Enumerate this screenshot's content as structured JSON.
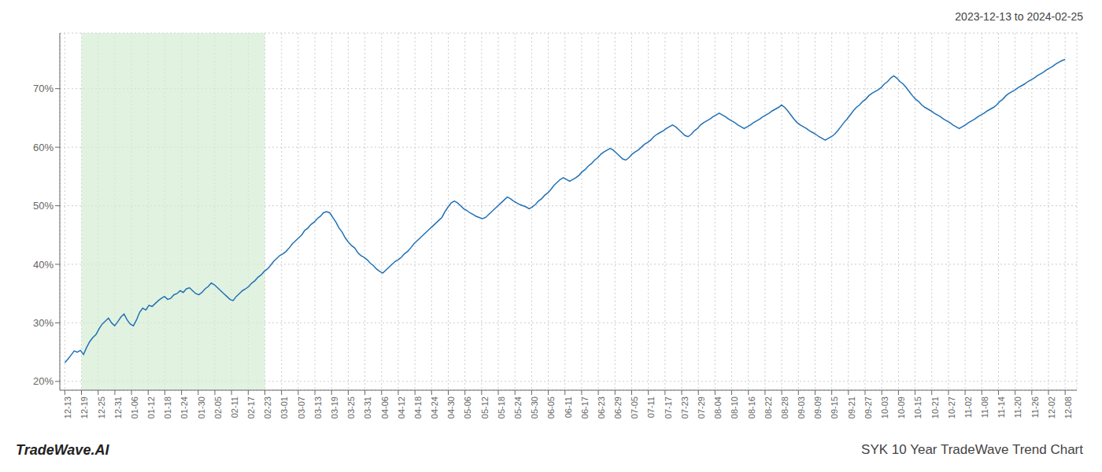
{
  "chart_data": {
    "type": "line",
    "title": "SYK 10 Year TradeWave Trend Chart",
    "subtitle": "2023-12-13 to 2024-02-25",
    "annotations": [
      "TradeWave.AI"
    ],
    "color": "#2171b5",
    "grid": true,
    "span": {
      "from": 1,
      "to": 12,
      "color": "#d4ecd4"
    },
    "xlim": [
      -0.3,
      60.7
    ],
    "xticks": [
      {
        "value": 0,
        "label": "12-13"
      },
      {
        "value": 1,
        "label": "12-19"
      },
      {
        "value": 2,
        "label": "12-25"
      },
      {
        "value": 3,
        "label": "12-31"
      },
      {
        "value": 4,
        "label": "01-06"
      },
      {
        "value": 5,
        "label": "01-12"
      },
      {
        "value": 6,
        "label": "01-18"
      },
      {
        "value": 7,
        "label": "01-24"
      },
      {
        "value": 8,
        "label": "01-30"
      },
      {
        "value": 9,
        "label": "02-05"
      },
      {
        "value": 10,
        "label": "02-11"
      },
      {
        "value": 11,
        "label": "02-17"
      },
      {
        "value": 12,
        "label": "02-23"
      },
      {
        "value": 13,
        "label": "03-01"
      },
      {
        "value": 14,
        "label": "03-07"
      },
      {
        "value": 15,
        "label": "03-13"
      },
      {
        "value": 16,
        "label": "03-19"
      },
      {
        "value": 17,
        "label": "03-25"
      },
      {
        "value": 18,
        "label": "03-31"
      },
      {
        "value": 19,
        "label": "04-06"
      },
      {
        "value": 20,
        "label": "04-12"
      },
      {
        "value": 21,
        "label": "04-18"
      },
      {
        "value": 22,
        "label": "04-24"
      },
      {
        "value": 23,
        "label": "04-30"
      },
      {
        "value": 24,
        "label": "05-06"
      },
      {
        "value": 25,
        "label": "05-12"
      },
      {
        "value": 26,
        "label": "05-18"
      },
      {
        "value": 27,
        "label": "05-24"
      },
      {
        "value": 28,
        "label": "05-30"
      },
      {
        "value": 29,
        "label": "06-05"
      },
      {
        "value": 30,
        "label": "06-11"
      },
      {
        "value": 31,
        "label": "06-17"
      },
      {
        "value": 32,
        "label": "06-23"
      },
      {
        "value": 33,
        "label": "06-29"
      },
      {
        "value": 34,
        "label": "07-05"
      },
      {
        "value": 35,
        "label": "07-11"
      },
      {
        "value": 36,
        "label": "07-17"
      },
      {
        "value": 37,
        "label": "07-23"
      },
      {
        "value": 38,
        "label": "07-29"
      },
      {
        "value": 39,
        "label": "08-04"
      },
      {
        "value": 40,
        "label": "08-10"
      },
      {
        "value": 41,
        "label": "08-16"
      },
      {
        "value": 42,
        "label": "08-22"
      },
      {
        "value": 43,
        "label": "08-28"
      },
      {
        "value": 44,
        "label": "09-03"
      },
      {
        "value": 45,
        "label": "09-09"
      },
      {
        "value": 46,
        "label": "09-15"
      },
      {
        "value": 47,
        "label": "09-21"
      },
      {
        "value": 48,
        "label": "09-27"
      },
      {
        "value": 49,
        "label": "10-03"
      },
      {
        "value": 50,
        "label": "10-09"
      },
      {
        "value": 51,
        "label": "10-15"
      },
      {
        "value": 52,
        "label": "10-21"
      },
      {
        "value": 53,
        "label": "10-27"
      },
      {
        "value": 54,
        "label": "11-02"
      },
      {
        "value": 55,
        "label": "11-08"
      },
      {
        "value": 56,
        "label": "11-14"
      },
      {
        "value": 57,
        "label": "11-20"
      },
      {
        "value": 58,
        "label": "11-26"
      },
      {
        "value": 59,
        "label": "12-02"
      },
      {
        "value": 60,
        "label": "12-08"
      }
    ],
    "ylim": [
      0.185,
      0.795
    ],
    "yticks": [
      {
        "value": 0.2,
        "label": "20%"
      },
      {
        "value": 0.3,
        "label": "30%"
      },
      {
        "value": 0.4,
        "label": "40%"
      },
      {
        "value": 0.5,
        "label": "50%"
      },
      {
        "value": 0.6,
        "label": "60%"
      },
      {
        "value": 0.7,
        "label": "70%"
      }
    ],
    "x": [
      0,
      0.1869,
      0.3738,
      0.5607,
      0.7477,
      0.9346,
      1.1215,
      1.3084,
      1.4953,
      1.6822,
      1.8692,
      2.0561,
      2.243,
      2.4299,
      2.6168,
      2.8037,
      2.9907,
      3.1776,
      3.3645,
      3.5514,
      3.7383,
      3.9252,
      4.1121,
      4.2991,
      4.486,
      4.6729,
      4.8598,
      5.0467,
      5.2336,
      5.4206,
      5.6075,
      5.7944,
      5.9813,
      6.1682,
      6.3551,
      6.5421,
      6.729,
      6.9159,
      7.1028,
      7.2897,
      7.4766,
      7.6636,
      7.8505,
      8.0374,
      8.2243,
      8.4112,
      8.5981,
      8.785,
      8.972,
      9.1589,
      9.3458,
      9.5327,
      9.7196,
      9.9065,
      10.0935,
      10.2804,
      10.4673,
      10.6542,
      10.8411,
      11.028,
      11.215,
      11.4019,
      11.5888,
      11.7757,
      11.9626,
      12.1495,
      12.3364,
      12.5234,
      12.7103,
      12.8972,
      13.0841,
      13.271,
      13.4579,
      13.6449,
      13.8318,
      14.0187,
      14.2056,
      14.3925,
      14.5794,
      14.7664,
      14.9533,
      15.1402,
      15.3271,
      15.514,
      15.7009,
      15.8879,
      16.0748,
      16.2617,
      16.4486,
      16.6355,
      16.8224,
      17.0093,
      17.1963,
      17.3832,
      17.5701,
      17.757,
      17.9439,
      18.1308,
      18.3178,
      18.5047,
      18.6916,
      18.8785,
      19.0654,
      19.2523,
      19.4393,
      19.6262,
      19.8131,
      20,
      20.1869,
      20.3738,
      20.5607,
      20.7477,
      20.9346,
      21.1215,
      21.3084,
      21.4953,
      21.6822,
      21.8692,
      22.0561,
      22.243,
      22.4299,
      22.6168,
      22.8037,
      22.9907,
      23.1776,
      23.3645,
      23.5514,
      23.7383,
      23.9252,
      24.1121,
      24.2991,
      24.486,
      24.6729,
      24.8598,
      25.0467,
      25.2336,
      25.4206,
      25.6075,
      25.7944,
      25.9813,
      26.1682,
      26.3551,
      26.5421,
      26.729,
      26.9159,
      27.1028,
      27.2897,
      27.4766,
      27.6636,
      27.8505,
      28.0374,
      28.2243,
      28.4112,
      28.5981,
      28.785,
      28.972,
      29.1589,
      29.3458,
      29.5327,
      29.7196,
      29.9065,
      30.0935,
      30.2804,
      30.4673,
      30.6542,
      30.8411,
      31.028,
      31.215,
      31.4019,
      31.5888,
      31.7757,
      31.9626,
      32.1495,
      32.3364,
      32.5234,
      32.7103,
      32.8972,
      33.0841,
      33.271,
      33.4579,
      33.6449,
      33.8318,
      34.0187,
      34.2056,
      34.3925,
      34.5794,
      34.7664,
      34.9533,
      35.1402,
      35.3271,
      35.514,
      35.7009,
      35.8879,
      36.0748,
      36.2617,
      36.4486,
      36.6355,
      36.8224,
      37.0093,
      37.1963,
      37.3832,
      37.5701,
      37.757,
      37.9439,
      38.1308,
      38.3178,
      38.5047,
      38.6916,
      38.8785,
      39.0654,
      39.2523,
      39.4393,
      39.6262,
      39.8131,
      40,
      40.1869,
      40.3738,
      40.5607,
      40.7477,
      40.9346,
      41.1215,
      41.3084,
      41.4953,
      41.6822,
      41.8692,
      42.0561,
      42.243,
      42.4299,
      42.6168,
      42.8037,
      42.9907,
      43.1776,
      43.3645,
      43.5514,
      43.7383,
      43.9252,
      44.1121,
      44.2991,
      44.486,
      44.6729,
      44.8598,
      45.0467,
      45.2336,
      45.4206,
      45.6075,
      45.7944,
      45.9813,
      46.1682,
      46.3551,
      46.5421,
      46.729,
      46.9159,
      47.1028,
      47.2897,
      47.4766,
      47.6636,
      47.8505,
      48.0374,
      48.2243,
      48.4112,
      48.5981,
      48.785,
      48.972,
      49.1589,
      49.3458,
      49.5327,
      49.7196,
      49.9065,
      50.0935,
      50.2804,
      50.4673,
      50.6542,
      50.8411,
      51.028,
      51.215,
      51.4019,
      51.5888,
      51.7757,
      51.9626,
      52.1495,
      52.3364,
      52.5234,
      52.7103,
      52.8972,
      53.0841,
      53.271,
      53.4579,
      53.6449,
      53.8318,
      54.0187,
      54.2056,
      54.3925,
      54.5794,
      54.7664,
      54.9533,
      55.1402,
      55.3271,
      55.514,
      55.7009,
      55.8879,
      56.0748,
      56.2617,
      56.4486,
      56.6355,
      56.8224,
      57.0093,
      57.1963,
      57.3832,
      57.5701,
      57.757,
      57.9439,
      58.1308,
      58.3178,
      58.5047,
      58.6916,
      58.8785,
      59.0654,
      59.2523,
      59.4393,
      59.6262,
      59.8131,
      60
    ],
    "values": [
      0.232,
      0.238,
      0.245,
      0.252,
      0.25,
      0.253,
      0.246,
      0.258,
      0.268,
      0.275,
      0.28,
      0.29,
      0.298,
      0.303,
      0.308,
      0.3,
      0.295,
      0.302,
      0.31,
      0.315,
      0.305,
      0.298,
      0.295,
      0.305,
      0.318,
      0.325,
      0.322,
      0.33,
      0.328,
      0.333,
      0.338,
      0.342,
      0.345,
      0.34,
      0.342,
      0.348,
      0.35,
      0.355,
      0.352,
      0.358,
      0.36,
      0.355,
      0.35,
      0.348,
      0.352,
      0.358,
      0.362,
      0.368,
      0.365,
      0.36,
      0.355,
      0.35,
      0.345,
      0.34,
      0.338,
      0.345,
      0.35,
      0.355,
      0.358,
      0.362,
      0.368,
      0.372,
      0.378,
      0.382,
      0.388,
      0.392,
      0.398,
      0.405,
      0.41,
      0.415,
      0.418,
      0.422,
      0.428,
      0.435,
      0.44,
      0.445,
      0.45,
      0.458,
      0.462,
      0.468,
      0.472,
      0.478,
      0.482,
      0.488,
      0.49,
      0.488,
      0.48,
      0.472,
      0.462,
      0.455,
      0.445,
      0.438,
      0.432,
      0.428,
      0.42,
      0.415,
      0.412,
      0.408,
      0.402,
      0.398,
      0.392,
      0.388,
      0.385,
      0.39,
      0.395,
      0.4,
      0.405,
      0.408,
      0.412,
      0.418,
      0.422,
      0.428,
      0.435,
      0.44,
      0.445,
      0.45,
      0.455,
      0.46,
      0.465,
      0.47,
      0.475,
      0.48,
      0.49,
      0.498,
      0.505,
      0.508,
      0.505,
      0.5,
      0.495,
      0.492,
      0.488,
      0.485,
      0.482,
      0.48,
      0.478,
      0.48,
      0.485,
      0.49,
      0.495,
      0.5,
      0.505,
      0.51,
      0.515,
      0.512,
      0.508,
      0.505,
      0.502,
      0.5,
      0.498,
      0.495,
      0.498,
      0.502,
      0.508,
      0.512,
      0.518,
      0.522,
      0.528,
      0.535,
      0.54,
      0.545,
      0.548,
      0.545,
      0.542,
      0.545,
      0.548,
      0.552,
      0.558,
      0.562,
      0.568,
      0.572,
      0.578,
      0.582,
      0.588,
      0.592,
      0.595,
      0.598,
      0.595,
      0.59,
      0.585,
      0.58,
      0.578,
      0.582,
      0.588,
      0.592,
      0.595,
      0.6,
      0.605,
      0.608,
      0.612,
      0.618,
      0.622,
      0.625,
      0.628,
      0.632,
      0.635,
      0.638,
      0.635,
      0.63,
      0.625,
      0.62,
      0.618,
      0.622,
      0.628,
      0.632,
      0.638,
      0.642,
      0.645,
      0.648,
      0.652,
      0.655,
      0.658,
      0.655,
      0.652,
      0.648,
      0.645,
      0.642,
      0.638,
      0.635,
      0.632,
      0.635,
      0.638,
      0.642,
      0.645,
      0.648,
      0.652,
      0.655,
      0.658,
      0.662,
      0.665,
      0.668,
      0.672,
      0.668,
      0.662,
      0.655,
      0.648,
      0.642,
      0.638,
      0.635,
      0.632,
      0.628,
      0.625,
      0.622,
      0.618,
      0.615,
      0.612,
      0.615,
      0.618,
      0.622,
      0.628,
      0.635,
      0.642,
      0.648,
      0.655,
      0.662,
      0.668,
      0.672,
      0.678,
      0.682,
      0.688,
      0.692,
      0.695,
      0.698,
      0.702,
      0.708,
      0.712,
      0.718,
      0.722,
      0.718,
      0.712,
      0.708,
      0.702,
      0.695,
      0.688,
      0.682,
      0.678,
      0.672,
      0.668,
      0.665,
      0.662,
      0.658,
      0.655,
      0.652,
      0.648,
      0.645,
      0.642,
      0.638,
      0.635,
      0.632,
      0.635,
      0.638,
      0.642,
      0.645,
      0.648,
      0.652,
      0.655,
      0.658,
      0.662,
      0.665,
      0.668,
      0.672,
      0.678,
      0.682,
      0.688,
      0.692,
      0.695,
      0.698,
      0.702,
      0.705,
      0.708,
      0.712,
      0.715,
      0.718,
      0.722,
      0.725,
      0.728,
      0.732,
      0.735,
      0.738,
      0.742,
      0.745,
      0.748,
      0.75
    ]
  }
}
